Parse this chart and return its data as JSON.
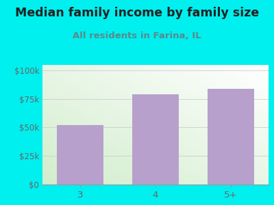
{
  "title": "Median family income by family size",
  "subtitle": "All residents in Farina, IL",
  "categories": [
    "3",
    "4",
    "5+"
  ],
  "values": [
    52000,
    79000,
    84000
  ],
  "bar_color": "#b8a0cc",
  "background_color": "#00efef",
  "title_color": "#222222",
  "subtitle_color": "#5a8a8a",
  "axis_label_color": "#666666",
  "yticks": [
    0,
    25000,
    50000,
    75000,
    100000
  ],
  "ytick_labels": [
    "$0",
    "$25k",
    "$50k",
    "$75k",
    "$100k"
  ],
  "ylim": [
    0,
    105000
  ],
  "title_fontsize": 12.5,
  "subtitle_fontsize": 9.5,
  "tick_fontsize": 8.5,
  "bar_width": 0.62
}
